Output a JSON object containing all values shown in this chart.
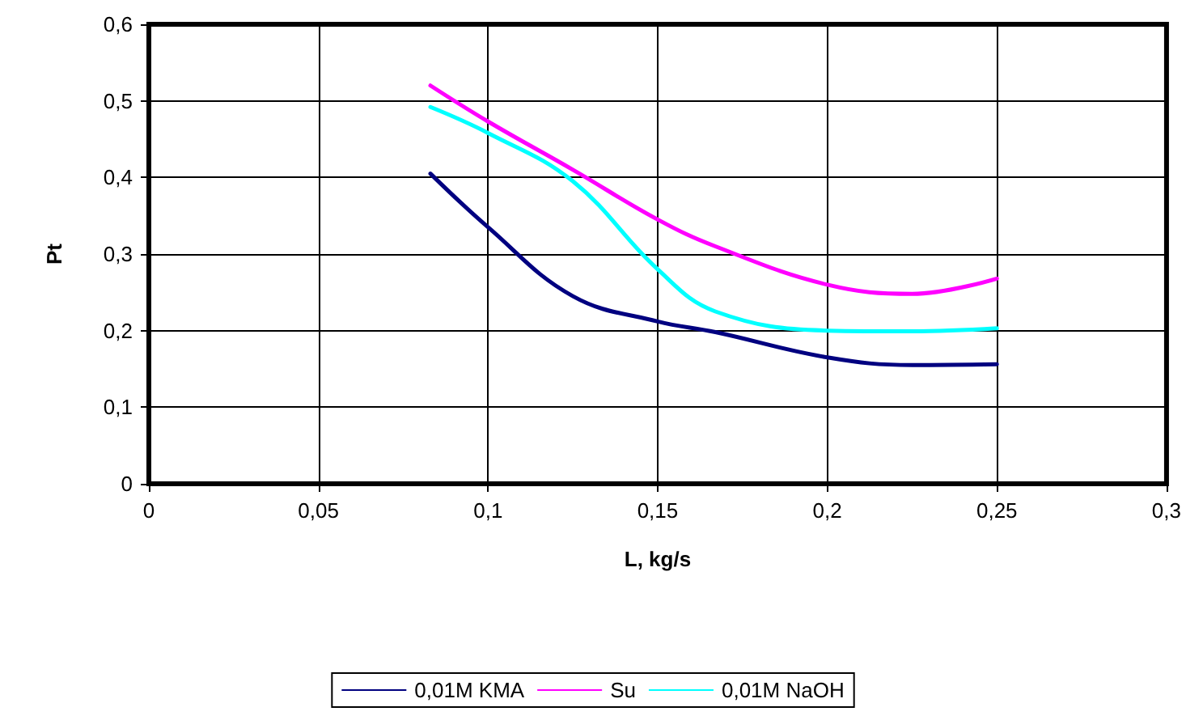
{
  "chart_data": {
    "type": "line",
    "xlabel": "L, kg/s",
    "ylabel": "Pt",
    "x": [
      0.083,
      0.1,
      0.125,
      0.15,
      0.167,
      0.2,
      0.225,
      0.25
    ],
    "series": [
      {
        "name": "0,01M KMA",
        "color": "#000080",
        "values": [
          0.405,
          0.335,
          0.245,
          0.212,
          0.198,
          0.165,
          0.155,
          0.156
        ]
      },
      {
        "name": "Su",
        "color": "#ff00ff",
        "values": [
          0.52,
          0.473,
          0.41,
          0.345,
          0.31,
          0.26,
          0.248,
          0.268
        ]
      },
      {
        "name": "0,01M NaOH",
        "color": "#00ffff",
        "values": [
          0.492,
          0.458,
          0.395,
          0.28,
          0.225,
          0.2,
          0.199,
          0.203
        ]
      }
    ],
    "xlim": [
      0,
      0.3
    ],
    "xticks": [
      {
        "value": 0,
        "label": "0"
      },
      {
        "value": 0.05,
        "label": "0,05"
      },
      {
        "value": 0.1,
        "label": "0,1"
      },
      {
        "value": 0.15,
        "label": "0,15"
      },
      {
        "value": 0.2,
        "label": "0,2"
      },
      {
        "value": 0.25,
        "label": "0,25"
      },
      {
        "value": 0.3,
        "label": "0,3"
      }
    ],
    "ylim": [
      0,
      0.6
    ],
    "yticks": [
      {
        "value": 0,
        "label": "0"
      },
      {
        "value": 0.1,
        "label": "0,1"
      },
      {
        "value": 0.2,
        "label": "0,2"
      },
      {
        "value": 0.3,
        "label": "0,3"
      },
      {
        "value": 0.4,
        "label": "0,4"
      },
      {
        "value": 0.5,
        "label": "0,5"
      },
      {
        "value": 0.6,
        "label": "0,6"
      }
    ],
    "grid": true,
    "legend": "bottom",
    "marker": "none",
    "line_style": "solid"
  }
}
